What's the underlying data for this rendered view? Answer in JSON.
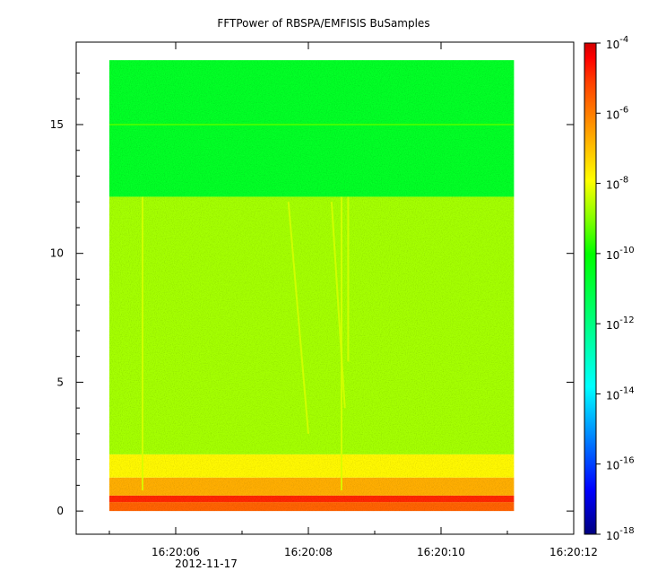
{
  "chart_data": {
    "type": "heatmap",
    "title": "FFTPower of RBSPA/EMFISIS  BuSamples",
    "xlabel": "",
    "ylabel": "",
    "x_axis": {
      "type": "time",
      "range": [
        "16:20:04.5",
        "16:20:12"
      ],
      "ticks": [
        "16:20:06",
        "16:20:08",
        "16:20:10",
        "16:20:12"
      ],
      "date_label": "2012-11-17",
      "data_range": [
        "16:20:05",
        "16:20:11.1"
      ]
    },
    "y_axis": {
      "range": [
        -0.9,
        18.2
      ],
      "ticks": [
        0,
        5,
        10,
        15
      ],
      "data_range": [
        0,
        17.5
      ]
    },
    "colorbar": {
      "scale": "log",
      "range": [
        1e-18,
        0.0001
      ],
      "ticks": [
        {
          "base": "10",
          "exp": "-4"
        },
        {
          "base": "10",
          "exp": "-6"
        },
        {
          "base": "10",
          "exp": "-8"
        },
        {
          "base": "10",
          "exp": "-10"
        },
        {
          "base": "10",
          "exp": "-12"
        },
        {
          "base": "10",
          "exp": "-14"
        },
        {
          "base": "10",
          "exp": "-16"
        },
        {
          "base": "10",
          "exp": "-18"
        }
      ],
      "colormap": [
        "#00007f",
        "#0000ff",
        "#00a0ff",
        "#00ffff",
        "#00ff80",
        "#00ff00",
        "#80ff00",
        "#ffff00",
        "#ffa000",
        "#ff4000",
        "#ff0000",
        "#d00000"
      ]
    },
    "bands": [
      {
        "y": [
          0,
          0.35
        ],
        "level": 1e-07
      },
      {
        "y": [
          0.35,
          0.6
        ],
        "level": 1e-06
      },
      {
        "y": [
          0.6,
          1.3
        ],
        "level": 1e-08
      },
      {
        "y": [
          1.3,
          2.2
        ],
        "level": 1e-09
      },
      {
        "y": [
          2.2,
          12.2
        ],
        "level": 1e-10
      },
      {
        "y": [
          12.2,
          17.5
        ],
        "level": 1e-12
      }
    ],
    "line_15hz": {
      "y": 15.0,
      "level": 1e-11
    },
    "bursts": [
      {
        "t": "16:20:05.5",
        "y": [
          0.8,
          12.2
        ]
      },
      {
        "t_start": "16:20:07.7",
        "t_end": "16:20:08.0",
        "y": [
          12.0,
          3.0
        ]
      },
      {
        "t_start": "16:20:08.35",
        "t_end": "16:20:08.55",
        "y": [
          12.0,
          4.0
        ]
      },
      {
        "t": "16:20:08.5",
        "y": [
          0.8,
          12.2
        ]
      },
      {
        "t": "16:20:08.6",
        "y": [
          5.8,
          12.2
        ]
      }
    ]
  }
}
